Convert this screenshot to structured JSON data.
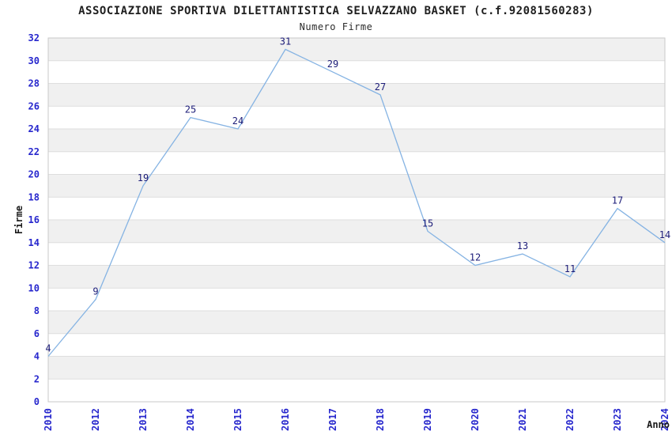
{
  "chart_data": {
    "type": "line",
    "title": "ASSOCIAZIONE SPORTIVA DILETTANTISTICA SELVAZZANO BASKET (c.f.92081560283)",
    "subtitle": "Numero Firme",
    "xlabel": "Anno",
    "ylabel": "Firme",
    "categories": [
      "2010",
      "2012",
      "2013",
      "2014",
      "2015",
      "2016",
      "2017",
      "2018",
      "2019",
      "2020",
      "2021",
      "2022",
      "2023",
      "2024"
    ],
    "values": [
      4,
      9,
      19,
      25,
      24,
      31,
      29,
      27,
      15,
      12,
      13,
      11,
      17,
      14
    ],
    "ylim": [
      0,
      32
    ],
    "ytick_step": 2,
    "grid": "horizontal-bands",
    "legend": "none",
    "show_point_labels": true,
    "colors": {
      "line": "#85b3e3",
      "tick_label": "#2727cd",
      "point_label": "#1c1c78",
      "band": "#f0f0f0",
      "gridline": "#dedede",
      "plot_border": "#c9c9c9",
      "title_text": "#1f1f1f",
      "background": "#ffffff"
    }
  }
}
